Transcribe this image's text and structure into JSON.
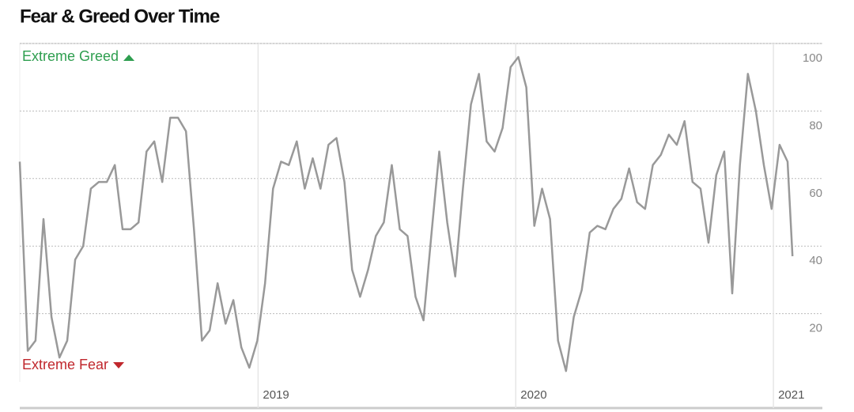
{
  "chart_data": {
    "type": "line",
    "title": "Fear & Greed Over Time",
    "color": "#999999",
    "x": [
      2018.075,
      2018.106,
      2018.136,
      2018.167,
      2018.198,
      2018.229,
      2018.259,
      2018.29,
      2018.321,
      2018.351,
      2018.382,
      2018.413,
      2018.444,
      2018.474,
      2018.505,
      2018.536,
      2018.567,
      2018.597,
      2018.628,
      2018.659,
      2018.689,
      2018.72,
      2018.751,
      2018.782,
      2018.812,
      2018.843,
      2018.874,
      2018.904,
      2018.935,
      2018.966,
      2018.997,
      2019.027,
      2019.058,
      2019.089,
      2019.119,
      2019.15,
      2019.181,
      2019.212,
      2019.242,
      2019.273,
      2019.304,
      2019.335,
      2019.365,
      2019.396,
      2019.427,
      2019.457,
      2019.488,
      2019.519,
      2019.55,
      2019.58,
      2019.611,
      2019.642,
      2019.672,
      2019.703,
      2019.734,
      2019.765,
      2019.795,
      2019.826,
      2019.857,
      2019.887,
      2019.918,
      2019.949,
      2019.98,
      2020.01,
      2020.041,
      2020.072,
      2020.102,
      2020.133,
      2020.164,
      2020.195,
      2020.225,
      2020.256,
      2020.287,
      2020.317,
      2020.348,
      2020.379,
      2020.41,
      2020.44,
      2020.471,
      2020.502,
      2020.532,
      2020.563,
      2020.594,
      2020.625,
      2020.655,
      2020.686,
      2020.717,
      2020.748,
      2020.778,
      2020.809,
      2020.84,
      2020.87,
      2020.901,
      2020.932,
      2020.963,
      2020.993,
      2021.024,
      2021.055,
      2021.074
    ],
    "values": [
      65,
      9,
      12,
      48,
      19,
      7,
      12,
      36,
      40,
      57,
      59,
      59,
      64,
      45,
      45,
      47,
      68,
      71,
      59,
      78,
      78,
      74,
      45,
      12,
      15,
      29,
      17,
      24,
      10,
      4,
      12,
      29,
      57,
      65,
      64,
      71,
      57,
      66,
      57,
      70,
      72,
      59,
      33,
      25,
      33,
      43,
      47,
      64,
      45,
      43,
      25,
      18,
      43,
      68,
      47,
      31,
      57,
      82,
      91,
      71,
      68,
      75,
      93,
      96,
      87,
      46,
      57,
      48,
      12,
      3,
      19,
      27,
      44,
      46,
      45,
      51,
      54,
      63,
      53,
      51,
      64,
      67,
      73,
      70,
      77,
      59,
      57,
      41,
      61,
      68,
      26,
      64,
      91,
      80,
      64,
      51,
      70,
      65,
      37
    ],
    "xlim": [
      2018.075,
      2021.19
    ],
    "xticks": [
      2019,
      2020,
      2021
    ],
    "ylim": [
      0,
      100
    ],
    "yticks": [
      20,
      40,
      60,
      80,
      100
    ],
    "grid": true,
    "annotations": [
      {
        "text": "Extreme Greed",
        "color": "#2e9e4f"
      },
      {
        "text": "Extreme Fear",
        "color": "#c0272d"
      }
    ]
  }
}
